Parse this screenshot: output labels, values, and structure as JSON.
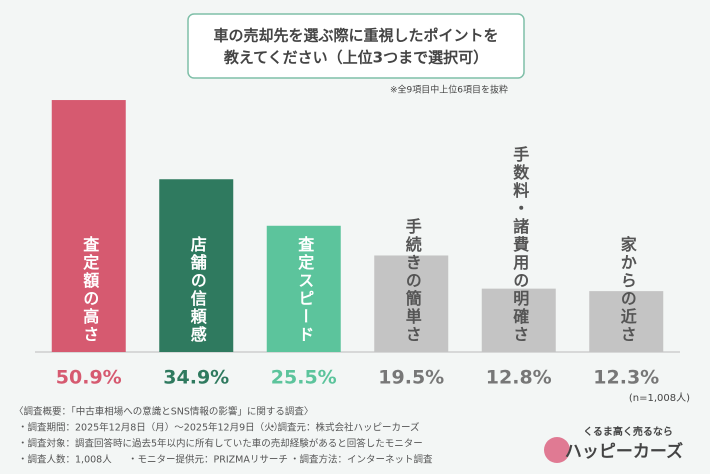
{
  "chart_data": {
    "type": "bar",
    "title": [
      "車の売却先を選ぶ際に重視したポイントを",
      "教えてください（上位3つまで選択可）"
    ],
    "note": "※全9項目中上位6項目を抜粋",
    "categories": [
      "査定額の高さ",
      "店舗の信頼感",
      "査定スピード",
      "手続きの簡単さ",
      "手数料・諸費用の明確さ",
      "家からの近さ"
    ],
    "values": [
      50.9,
      34.9,
      25.5,
      19.5,
      12.8,
      12.3
    ],
    "value_labels": [
      "50.9%",
      "34.9%",
      "25.5%",
      "19.5%",
      "12.8%",
      "12.3%"
    ],
    "colors": [
      "#d65a70",
      "#2f7a5f",
      "#5cc49c",
      "#c4c4c4",
      "#c4c4c4",
      "#c4c4c4"
    ],
    "label_colors": [
      "#ffffff",
      "#ffffff",
      "#ffffff",
      "#555555",
      "#555555",
      "#555555"
    ],
    "value_label_colors": [
      "#d65a70",
      "#2f7a5f",
      "#5cc49c",
      "#777777",
      "#777777",
      "#777777"
    ],
    "sample": "(n=1,008人)"
  },
  "footer": {
    "title": "〈調査概要：「中古車相場への意識とSNS情報の影響」に関する調査〉",
    "period": "・調査期間：2025年12月8日（月）～2025年12月9日（火）",
    "source": "・調査元：株式会社ハッピーカーズ",
    "target": "・調査対象：調査回答時に過去5年以内に所有していた車の売却経験があると回答したモニター",
    "count": "・調査人数：1,008人",
    "provider": "・モニター提供元：PRIZMAリサーチ",
    "method": "・調査方法：インターネット調査",
    "logo_tagline": "くるま高く売るなら",
    "logo_name": "ハッピーカーズ"
  }
}
